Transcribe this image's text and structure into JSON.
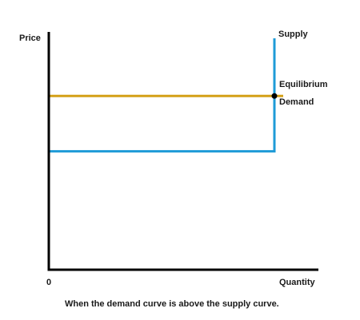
{
  "chart_data": {
    "type": "line",
    "ylabel": "Price",
    "xlabel": "Quantity",
    "origin_label": "0",
    "caption": "When the demand curve is above the supply curve.",
    "xlim": [
      0,
      100
    ],
    "ylim": [
      0,
      100
    ],
    "series": [
      {
        "name": "Supply",
        "color": "#1e9bd7",
        "points": [
          [
            0,
            51
          ],
          [
            100,
            51
          ],
          [
            100,
            100
          ]
        ]
      },
      {
        "name": "Demand",
        "color": "#d4a017",
        "points": [
          [
            0,
            75
          ],
          [
            100,
            75
          ]
        ]
      }
    ],
    "annotations": [
      {
        "text": "Equilibrium",
        "x": 100,
        "y": 75
      }
    ]
  }
}
